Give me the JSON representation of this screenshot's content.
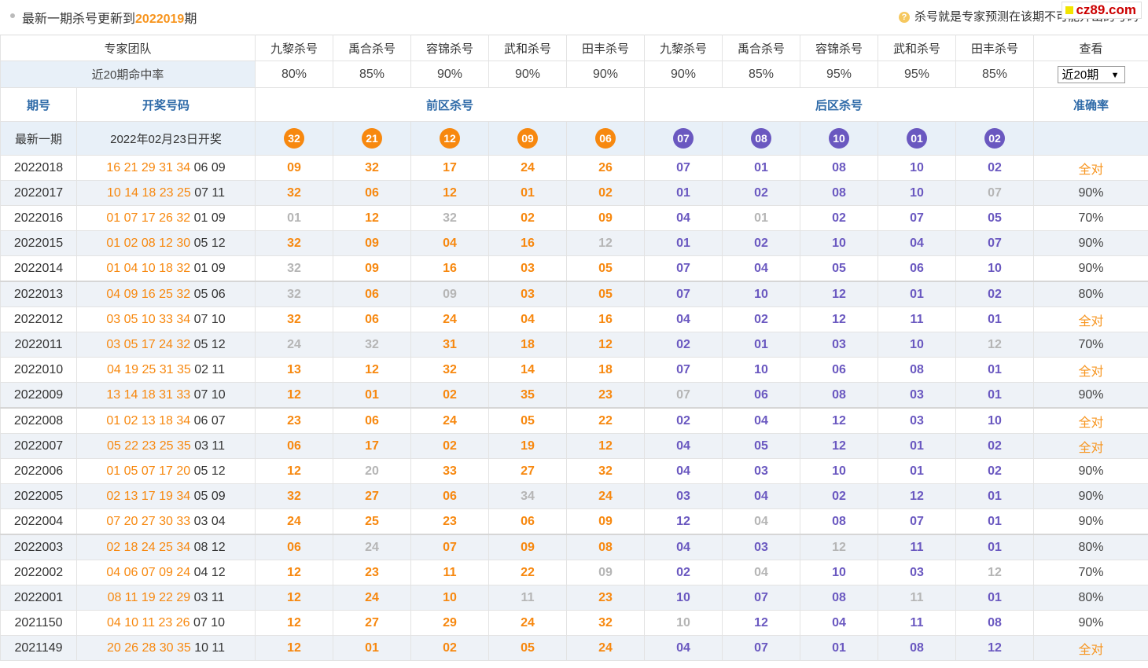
{
  "notice": {
    "prefix": "最新一期杀号更新到",
    "issue": "2022019",
    "suffix": "期"
  },
  "tip": "杀号就是专家预测在该期不可能开出的号码",
  "watermark": "cz89.com",
  "experts_label": "专家团队",
  "experts": [
    "九黎杀号",
    "禹合杀号",
    "容锦杀号",
    "武和杀号",
    "田丰杀号",
    "九黎杀号",
    "禹合杀号",
    "容锦杀号",
    "武和杀号",
    "田丰杀号"
  ],
  "view_label": "查看",
  "rate_label": "近20期命中率",
  "rates": [
    "80%",
    "85%",
    "90%",
    "90%",
    "90%",
    "90%",
    "85%",
    "95%",
    "95%",
    "85%"
  ],
  "period_select": "近20期",
  "header": {
    "issue": "期号",
    "numbers": "开奖号码",
    "front": "前区杀号",
    "back": "后区杀号",
    "accuracy": "准确率"
  },
  "latest": {
    "label": "最新一期",
    "date": "2022年02月23日开奖",
    "front_kills": [
      "32",
      "21",
      "12",
      "09",
      "06"
    ],
    "back_kills": [
      "07",
      "08",
      "10",
      "01",
      "02"
    ]
  },
  "colors": {
    "front": "#f7880f",
    "back": "#6a58c0",
    "miss": "#b5b5b5",
    "header": "#2e6aa8"
  },
  "rows": [
    {
      "issue": "2022018",
      "front": "16 21 29 31 34",
      "back": "06 09",
      "kills": [
        "09",
        "32",
        "17",
        "24",
        "26",
        "07",
        "01",
        "08",
        "10",
        "02"
      ],
      "miss": [],
      "acc": "全对"
    },
    {
      "issue": "2022017",
      "front": "10 14 18 23 25",
      "back": "07 11",
      "kills": [
        "32",
        "06",
        "12",
        "01",
        "02",
        "01",
        "02",
        "08",
        "10",
        "07"
      ],
      "miss": [
        9
      ],
      "acc": "90%"
    },
    {
      "issue": "2022016",
      "front": "01 07 17 26 32",
      "back": "01 09",
      "kills": [
        "01",
        "12",
        "32",
        "02",
        "09",
        "04",
        "01",
        "02",
        "07",
        "05"
      ],
      "miss": [
        0,
        2,
        6
      ],
      "acc": "70%"
    },
    {
      "issue": "2022015",
      "front": "01 02 08 12 30",
      "back": "05 12",
      "kills": [
        "32",
        "09",
        "04",
        "16",
        "12",
        "01",
        "02",
        "10",
        "04",
        "07"
      ],
      "miss": [
        4
      ],
      "acc": "90%"
    },
    {
      "issue": "2022014",
      "front": "01 04 10 18 32",
      "back": "01 09",
      "kills": [
        "32",
        "09",
        "16",
        "03",
        "05",
        "07",
        "04",
        "05",
        "06",
        "10"
      ],
      "miss": [
        0
      ],
      "acc": "90%"
    },
    {
      "issue": "2022013",
      "front": "04 09 16 25 32",
      "back": "05 06",
      "kills": [
        "32",
        "06",
        "09",
        "03",
        "05",
        "07",
        "10",
        "12",
        "01",
        "02"
      ],
      "miss": [
        0,
        2
      ],
      "acc": "80%"
    },
    {
      "issue": "2022012",
      "front": "03 05 10 33 34",
      "back": "07 10",
      "kills": [
        "32",
        "06",
        "24",
        "04",
        "16",
        "04",
        "02",
        "12",
        "11",
        "01"
      ],
      "miss": [],
      "acc": "全对"
    },
    {
      "issue": "2022011",
      "front": "03 05 17 24 32",
      "back": "05 12",
      "kills": [
        "24",
        "32",
        "31",
        "18",
        "12",
        "02",
        "01",
        "03",
        "10",
        "12"
      ],
      "miss": [
        0,
        1,
        9
      ],
      "acc": "70%"
    },
    {
      "issue": "2022010",
      "front": "04 19 25 31 35",
      "back": "02 11",
      "kills": [
        "13",
        "12",
        "32",
        "14",
        "18",
        "07",
        "10",
        "06",
        "08",
        "01"
      ],
      "miss": [],
      "acc": "全对"
    },
    {
      "issue": "2022009",
      "front": "13 14 18 31 33",
      "back": "07 10",
      "kills": [
        "12",
        "01",
        "02",
        "35",
        "23",
        "07",
        "06",
        "08",
        "03",
        "01"
      ],
      "miss": [
        5
      ],
      "acc": "90%"
    },
    {
      "issue": "2022008",
      "front": "01 02 13 18 34",
      "back": "06 07",
      "kills": [
        "23",
        "06",
        "24",
        "05",
        "22",
        "02",
        "04",
        "12",
        "03",
        "10"
      ],
      "miss": [],
      "acc": "全对"
    },
    {
      "issue": "2022007",
      "front": "05 22 23 25 35",
      "back": "03 11",
      "kills": [
        "06",
        "17",
        "02",
        "19",
        "12",
        "04",
        "05",
        "12",
        "01",
        "02"
      ],
      "miss": [],
      "acc": "全对"
    },
    {
      "issue": "2022006",
      "front": "01 05 07 17 20",
      "back": "05 12",
      "kills": [
        "12",
        "20",
        "33",
        "27",
        "32",
        "04",
        "03",
        "10",
        "01",
        "02"
      ],
      "miss": [
        1
      ],
      "acc": "90%"
    },
    {
      "issue": "2022005",
      "front": "02 13 17 19 34",
      "back": "05 09",
      "kills": [
        "32",
        "27",
        "06",
        "34",
        "24",
        "03",
        "04",
        "02",
        "12",
        "01"
      ],
      "miss": [
        3
      ],
      "acc": "90%"
    },
    {
      "issue": "2022004",
      "front": "07 20 27 30 33",
      "back": "03 04",
      "kills": [
        "24",
        "25",
        "23",
        "06",
        "09",
        "12",
        "04",
        "08",
        "07",
        "01"
      ],
      "miss": [
        6
      ],
      "acc": "90%"
    },
    {
      "issue": "2022003",
      "front": "02 18 24 25 34",
      "back": "08 12",
      "kills": [
        "06",
        "24",
        "07",
        "09",
        "08",
        "04",
        "03",
        "12",
        "11",
        "01"
      ],
      "miss": [
        1,
        7
      ],
      "acc": "80%"
    },
    {
      "issue": "2022002",
      "front": "04 06 07 09 24",
      "back": "04 12",
      "kills": [
        "12",
        "23",
        "11",
        "22",
        "09",
        "02",
        "04",
        "10",
        "03",
        "12"
      ],
      "miss": [
        4,
        6,
        9
      ],
      "acc": "70%"
    },
    {
      "issue": "2022001",
      "front": "08 11 19 22 29",
      "back": "03 11",
      "kills": [
        "12",
        "24",
        "10",
        "11",
        "23",
        "10",
        "07",
        "08",
        "11",
        "01"
      ],
      "miss": [
        3,
        8
      ],
      "acc": "80%"
    },
    {
      "issue": "2021150",
      "front": "04 10 11 23 26",
      "back": "07 10",
      "kills": [
        "12",
        "27",
        "29",
        "24",
        "32",
        "10",
        "12",
        "04",
        "11",
        "08"
      ],
      "miss": [
        5
      ],
      "acc": "90%"
    },
    {
      "issue": "2021149",
      "front": "20 26 28 30 35",
      "back": "10 11",
      "kills": [
        "12",
        "01",
        "02",
        "05",
        "24",
        "04",
        "07",
        "01",
        "08",
        "12"
      ],
      "miss": [],
      "acc": "全对"
    }
  ]
}
